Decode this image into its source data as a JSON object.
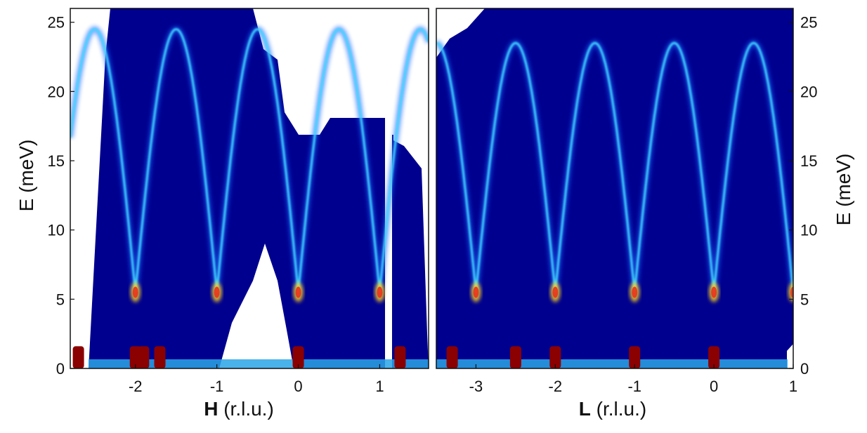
{
  "chart_data": [
    {
      "type": "heatmap",
      "panel": "left",
      "xlabel_bold": "H",
      "xlabel_rest": " (r.l.u.)",
      "ylabel": "E (meV)",
      "xlim": [
        -2.8,
        1.6
      ],
      "ylim": [
        0,
        26
      ],
      "xticks": [
        -2,
        -1,
        0,
        1
      ],
      "xtick_labels": [
        "-2",
        "-1",
        "0",
        "1"
      ],
      "yticks": [
        0,
        5,
        10,
        15,
        20,
        25
      ],
      "ytick_labels": [
        "0",
        "5",
        "10",
        "15",
        "20",
        "25"
      ],
      "colormap": "jet",
      "dispersion": {
        "zone_centers": [
          -2,
          -1,
          0,
          1
        ],
        "max_energy_meV": 24.5,
        "min_energy_meV": 5.5
      },
      "bragg_peaks_h": [
        -2.7,
        -2,
        -1.9,
        -1.7,
        0,
        1.25
      ]
    },
    {
      "type": "heatmap",
      "panel": "right",
      "xlabel_bold": "L",
      "xlabel_rest": " (r.l.u.)",
      "ylabel": "E (meV)",
      "xlim": [
        -3.5,
        1
      ],
      "ylim": [
        0,
        26
      ],
      "xticks": [
        -3,
        -2,
        -1,
        0,
        1
      ],
      "xtick_labels": [
        "-3",
        "-2",
        "-1",
        "0",
        "1"
      ],
      "yticks": [
        0,
        5,
        10,
        15,
        20,
        25
      ],
      "ytick_labels": [
        "0",
        "5",
        "10",
        "15",
        "20",
        "25"
      ],
      "colormap": "jet",
      "dispersion": {
        "zone_centers": [
          -3,
          -2,
          -1,
          0,
          1
        ],
        "max_energy_meV": 23.5,
        "min_energy_meV": 5.5
      },
      "bragg_peaks_l": [
        -3.3,
        -2.5,
        -2,
        -1,
        0
      ]
    }
  ]
}
